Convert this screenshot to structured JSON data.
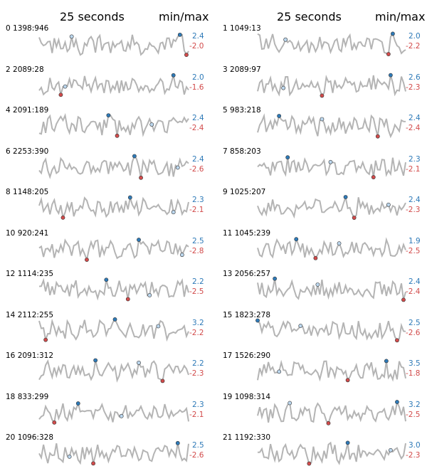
{
  "header": {
    "left_title": "25 seconds",
    "left_minmax": "min/max",
    "right_title": "25 seconds",
    "right_minmax": "min/max"
  },
  "colors": {
    "line": "#b4b4b4",
    "max": "#2e7ab8",
    "min": "#d24b4b",
    "last": "#bcd7ee",
    "last_min": "#f2c0c0"
  },
  "chart_data": {
    "type": "line",
    "title": "",
    "xlabel": "",
    "ylabel": "",
    "grid": false,
    "legend": "none",
    "panels": [
      {
        "label": "0 1398:946",
        "max": "2.4",
        "min": "-2.0"
      },
      {
        "label": "1 1049:13",
        "max": "2.0",
        "min": "-2.2"
      },
      {
        "label": "2 2089:28",
        "max": "2.0",
        "min": "-1.6"
      },
      {
        "label": "3 2089:97",
        "max": "2.6",
        "min": "-2.3"
      },
      {
        "label": "4 2091:189",
        "max": "2.4",
        "min": "-2.4"
      },
      {
        "label": "5 983:218",
        "max": "2.4",
        "min": "-2.4"
      },
      {
        "label": "6 2253:390",
        "max": "2.4",
        "min": "-2.6"
      },
      {
        "label": "7 858:203",
        "max": "2.3",
        "min": "-2.1"
      },
      {
        "label": "8 1148:205",
        "max": "2.3",
        "min": "-2.1"
      },
      {
        "label": "9 1025:207",
        "max": "2.4",
        "min": "-2.3"
      },
      {
        "label": "10 920:241",
        "max": "2.5",
        "min": "-2.8"
      },
      {
        "label": "11 1045:239",
        "max": "1.9",
        "min": "-2.5"
      },
      {
        "label": "12 1114:235",
        "max": "2.2",
        "min": "-2.5"
      },
      {
        "label": "13 2056:257",
        "max": "2.4",
        "min": "-2.4"
      },
      {
        "label": "14 2112:255",
        "max": "3.2",
        "min": "-2.2"
      },
      {
        "label": "15 1823:278",
        "max": "2.5",
        "min": "-2.6"
      },
      {
        "label": "16 2091:312",
        "max": "2.2",
        "min": "-2.3"
      },
      {
        "label": "17 1526:290",
        "max": "3.5",
        "min": "-1.8"
      },
      {
        "label": "18 833:299",
        "max": "2.3",
        "min": "-2.1"
      },
      {
        "label": "19 1098:314",
        "max": "3.2",
        "min": "-2.5"
      },
      {
        "label": "20 1096:328",
        "max": "2.5",
        "min": "-2.6"
      },
      {
        "label": "21 1192:330",
        "max": "3.0",
        "min": "-2.3"
      }
    ]
  }
}
